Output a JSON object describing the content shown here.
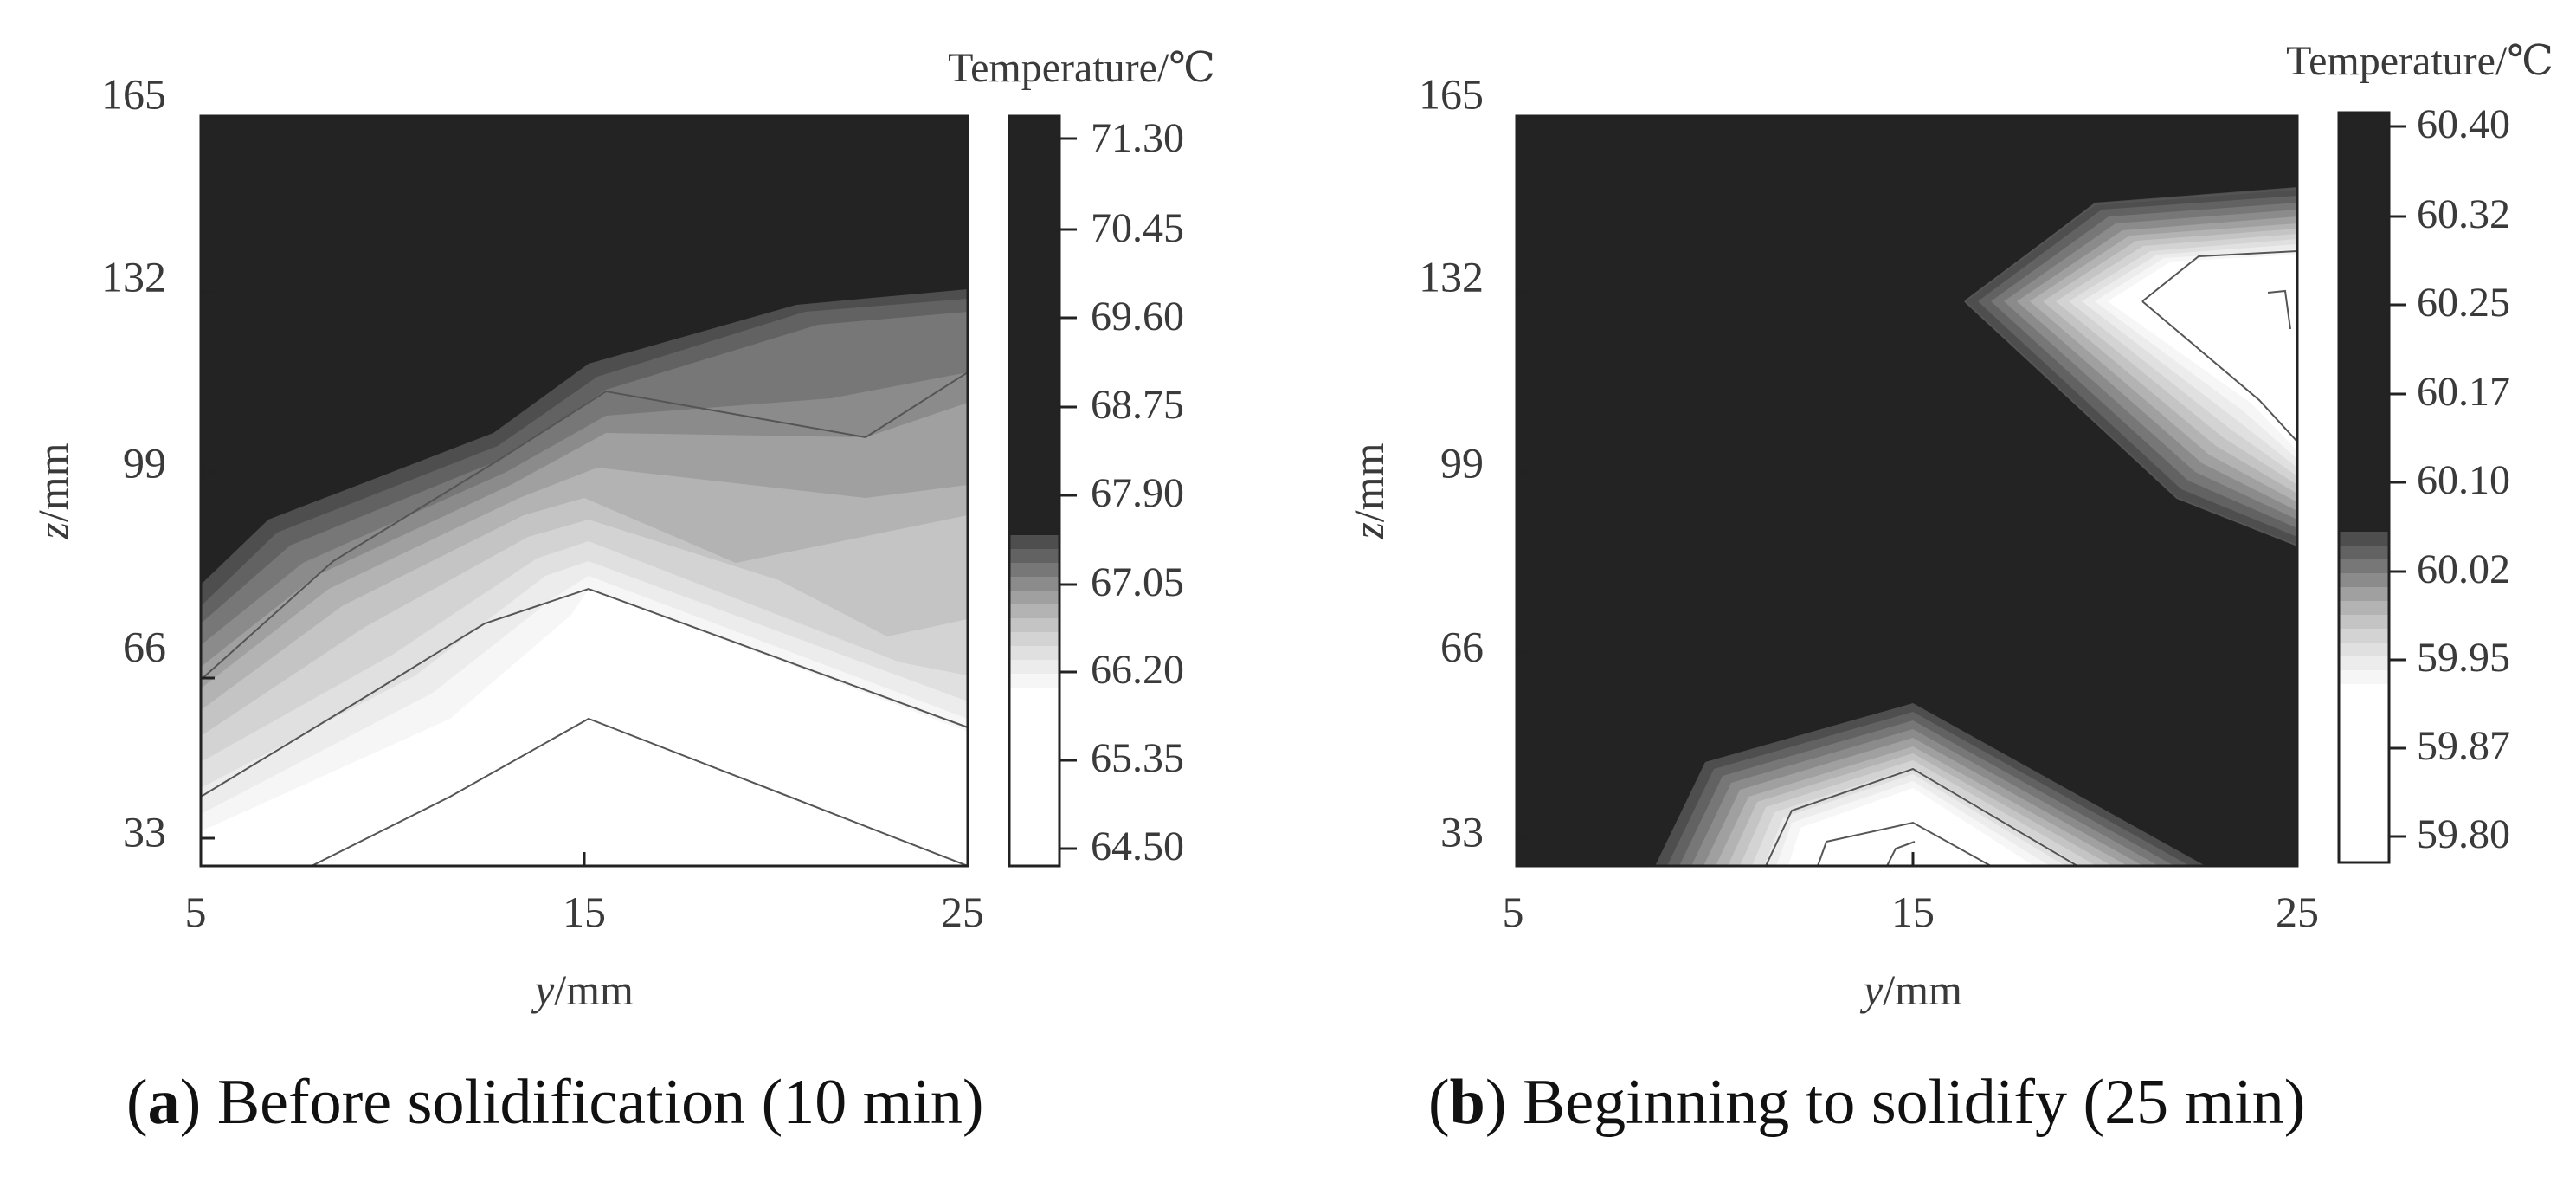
{
  "chart_data": [
    {
      "type": "heatmap",
      "panel_label": "a",
      "caption": "Before solidification (10 min)",
      "xlabel_var": "y",
      "xlabel_unit": "/mm",
      "ylabel_var": "z",
      "ylabel_unit": "/mm",
      "x_ticks": [
        "5",
        "15",
        "25"
      ],
      "y_ticks": [
        "165",
        "132",
        "99",
        "66",
        "33"
      ],
      "xlim": [
        5,
        25
      ],
      "ylim": [
        27,
        165
      ],
      "colorbar_title": "Temperature/℃",
      "colorbar_ticks": [
        "71.30",
        "70.45",
        "69.60",
        "68.75",
        "67.90",
        "67.05",
        "66.20",
        "65.35",
        "64.50"
      ],
      "colorbar_range": [
        64.5,
        71.3
      ],
      "level_colors": [
        "#ffffff",
        "#f6f6f6",
        "#ececec",
        "#e0e0e0",
        "#d3d3d3",
        "#c4c4c4",
        "#b3b3b3",
        "#a0a0a0",
        "#8b8b8b",
        "#777777",
        "#626262",
        "#4e4e4e",
        "#232323"
      ],
      "grid": false
    },
    {
      "type": "heatmap",
      "panel_label": "b",
      "caption": "Beginning to solidify (25 min)",
      "xlabel_var": "y",
      "xlabel_unit": "/mm",
      "ylabel_var": "z",
      "ylabel_unit": "/mm",
      "x_ticks": [
        "5",
        "15",
        "25"
      ],
      "y_ticks": [
        "165",
        "132",
        "99",
        "66",
        "33"
      ],
      "xlim": [
        5,
        25
      ],
      "ylim": [
        27,
        165
      ],
      "colorbar_title": "Temperature/℃",
      "colorbar_ticks": [
        "60.40",
        "60.32",
        "60.25",
        "60.17",
        "60.10",
        "60.02",
        "59.95",
        "59.87",
        "59.80"
      ],
      "colorbar_range": [
        59.8,
        60.4
      ],
      "level_colors": [
        "#ffffff",
        "#f6f6f6",
        "#ececec",
        "#e0e0e0",
        "#d3d3d3",
        "#c4c4c4",
        "#b3b3b3",
        "#a0a0a0",
        "#8b8b8b",
        "#777777",
        "#626262",
        "#4e4e4e",
        "#232323"
      ],
      "grid": false
    }
  ]
}
